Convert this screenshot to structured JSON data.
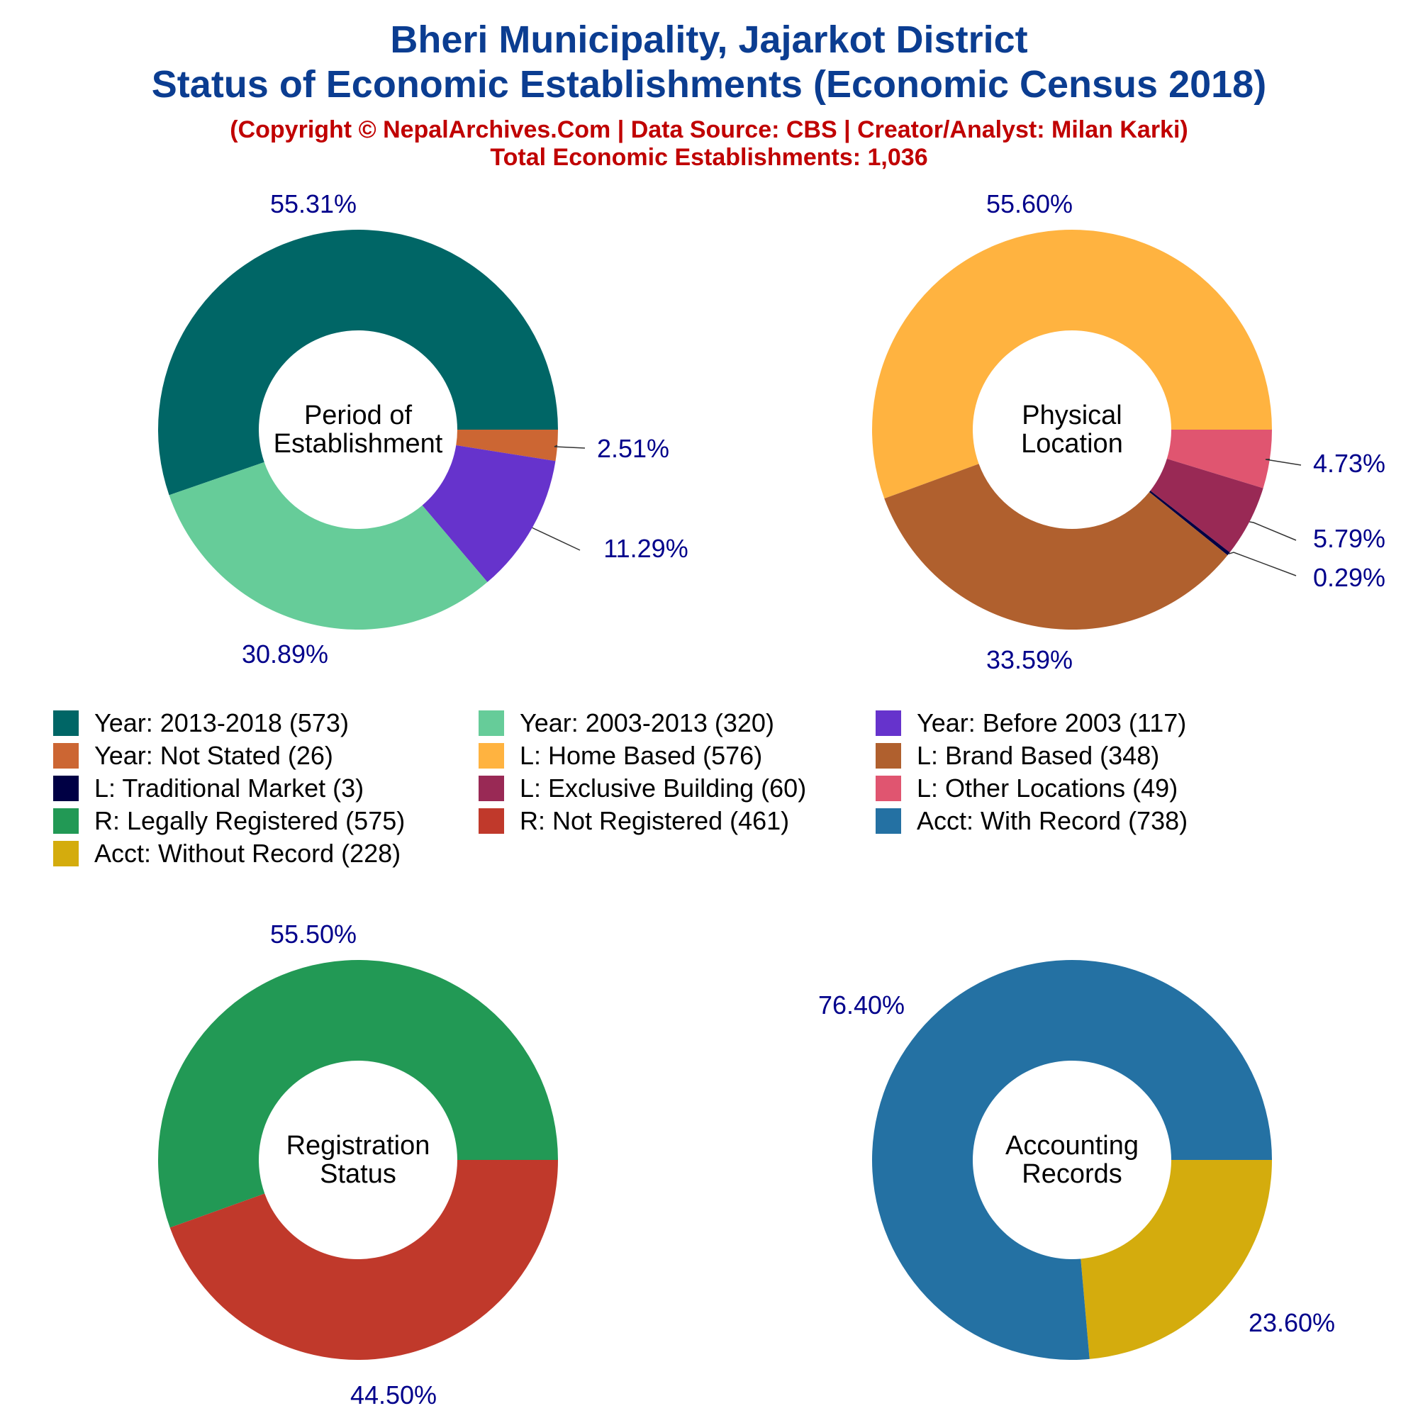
{
  "header": {
    "title_line1": "Bheri Municipality, Jajarkot District",
    "title_line2": "Status of Economic Establishments (Economic Census 2018)",
    "subtitle_line1": "(Copyright © NepalArchives.Com | Data Source: CBS | Creator/Analyst: Milan Karki)",
    "subtitle_line2": "Total Economic Establishments: 1,036"
  },
  "colors": {
    "label_text": "#00008b",
    "center_text": "#000000"
  },
  "chart_data": [
    {
      "type": "pie",
      "variant": "donut",
      "center_label": [
        "Period of",
        "Establishment"
      ],
      "slices": [
        {
          "label": "Year: 2013-2018",
          "value": 573,
          "pct": "55.31%",
          "color": "#006666"
        },
        {
          "label": "Year: Not Stated",
          "value": 26,
          "pct": "2.51%",
          "color": "#cc6633"
        },
        {
          "label": "Year: Before 2003",
          "value": 117,
          "pct": "11.29%",
          "color": "#6633cc"
        },
        {
          "label": "Year: 2003-2013",
          "value": 320,
          "pct": "30.89%",
          "color": "#66cc99"
        }
      ]
    },
    {
      "type": "pie",
      "variant": "donut",
      "center_label": [
        "Physical",
        "Location"
      ],
      "slices": [
        {
          "label": "L: Home Based",
          "value": 576,
          "pct": "55.60%",
          "color": "#ffb340"
        },
        {
          "label": "L: Other Locations",
          "value": 49,
          "pct": "4.73%",
          "color": "#e05570"
        },
        {
          "label": "L: Exclusive Building",
          "value": 60,
          "pct": "5.79%",
          "color": "#992955"
        },
        {
          "label": "L: Traditional Market",
          "value": 3,
          "pct": "0.29%",
          "color": "#000044"
        },
        {
          "label": "L: Brand Based",
          "value": 348,
          "pct": "33.59%",
          "color": "#b0602e"
        }
      ]
    },
    {
      "type": "pie",
      "variant": "donut",
      "center_label": [
        "Registration",
        "Status"
      ],
      "slices": [
        {
          "label": "R: Legally Registered",
          "value": 575,
          "pct": "55.50%",
          "color": "#229955"
        },
        {
          "label": "R: Not Registered",
          "value": 461,
          "pct": "44.50%",
          "color": "#c0392b"
        }
      ]
    },
    {
      "type": "pie",
      "variant": "donut",
      "center_label": [
        "Accounting",
        "Records"
      ],
      "slices": [
        {
          "label": "Acct: Without Record",
          "value": 228,
          "pct": "23.60%",
          "color": "#d4ac0d"
        },
        {
          "label": "Acct: With Record",
          "value": 738,
          "pct": "76.40%",
          "color": "#2471a3"
        }
      ]
    }
  ],
  "legend": [
    {
      "text": "Year: 2013-2018 (573)",
      "color": "#006666"
    },
    {
      "text": "Year: 2003-2013 (320)",
      "color": "#66cc99"
    },
    {
      "text": "Year: Before 2003 (117)",
      "color": "#6633cc"
    },
    {
      "text": "Year: Not Stated (26)",
      "color": "#cc6633"
    },
    {
      "text": "L: Home Based (576)",
      "color": "#ffb340"
    },
    {
      "text": "L: Brand Based (348)",
      "color": "#b0602e"
    },
    {
      "text": "L: Traditional Market (3)",
      "color": "#000044"
    },
    {
      "text": "L: Exclusive Building (60)",
      "color": "#992955"
    },
    {
      "text": "L: Other Locations (49)",
      "color": "#e05570"
    },
    {
      "text": "R: Legally Registered (575)",
      "color": "#229955"
    },
    {
      "text": "R: Not Registered (461)",
      "color": "#c0392b"
    },
    {
      "text": "Acct: With Record (738)",
      "color": "#2471a3"
    },
    {
      "text": "Acct: Without Record (228)",
      "color": "#d4ac0d"
    }
  ]
}
